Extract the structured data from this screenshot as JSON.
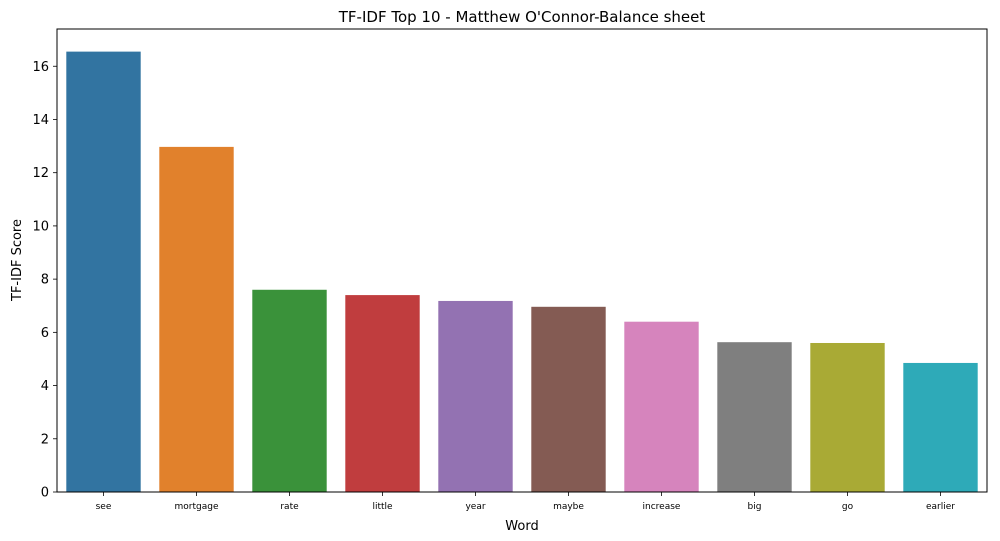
{
  "chart_data": {
    "type": "bar",
    "title": "TF-IDF Top 10 - Matthew O'Connor-Balance sheet",
    "xlabel": "Word",
    "ylabel": "TF-IDF Score",
    "categories": [
      "see",
      "mortgage",
      "rate",
      "little",
      "year",
      "maybe",
      "increase",
      "big",
      "go",
      "earlier"
    ],
    "values": [
      16.55,
      12.97,
      7.6,
      7.4,
      7.18,
      6.96,
      6.4,
      5.63,
      5.6,
      4.85
    ],
    "colors": [
      "#3274a1",
      "#e1812c",
      "#3a923a",
      "#c03d3e",
      "#9372b2",
      "#845b53",
      "#d684bd",
      "#7f7f7f",
      "#a9aa35",
      "#2eaab8"
    ],
    "ylim": [
      0,
      17.4
    ],
    "yticks": [
      0,
      2,
      4,
      6,
      8,
      10,
      12,
      14,
      16
    ],
    "grid": false
  }
}
